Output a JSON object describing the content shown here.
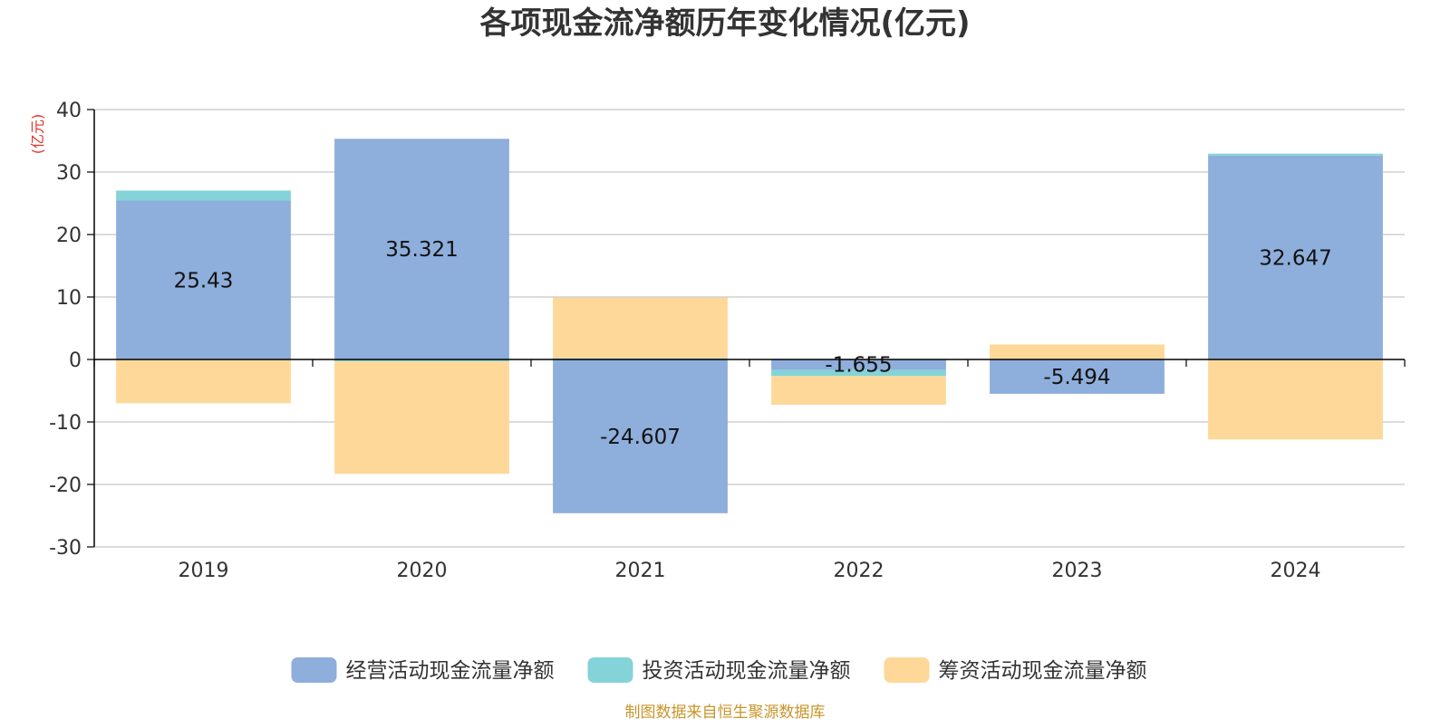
{
  "chart_data": {
    "type": "bar",
    "stacked": true,
    "title": "各项现金流净额历年变化情况(亿元)",
    "ylabel": "(亿元)",
    "xlabel": "",
    "categories": [
      "2019",
      "2020",
      "2021",
      "2022",
      "2023",
      "2024"
    ],
    "ylim": [
      -30,
      40
    ],
    "yticks": [
      -30,
      -20,
      -10,
      0,
      10,
      20,
      30,
      40
    ],
    "grid": true,
    "legend_position": "bottom",
    "series": [
      {
        "name": "经营活动现金流量净额",
        "color": "#8eaedb",
        "values": [
          25.43,
          35.321,
          -24.607,
          -1.655,
          -5.494,
          32.647
        ],
        "labels": [
          "25.43",
          "35.321",
          "-24.607",
          "-1.655",
          "-5.494",
          "32.647"
        ]
      },
      {
        "name": "投资活动现金流量净额",
        "color": "#84d3d8",
        "values": [
          1.6,
          -0.3,
          0.2,
          -1.0,
          0.1,
          0.3
        ]
      },
      {
        "name": "筹资活动现金流量净额",
        "color": "#fed898",
        "values": [
          -7.0,
          -18.0,
          9.7,
          -4.6,
          2.3,
          -12.8
        ]
      }
    ],
    "source": "制图数据来自恒生聚源数据库"
  },
  "colors": {
    "axis": "#000000",
    "grid": "#c8c8c8",
    "title": "#333333",
    "text": "#333333",
    "ylabel": "#e5312a",
    "source": "#c8952a"
  }
}
